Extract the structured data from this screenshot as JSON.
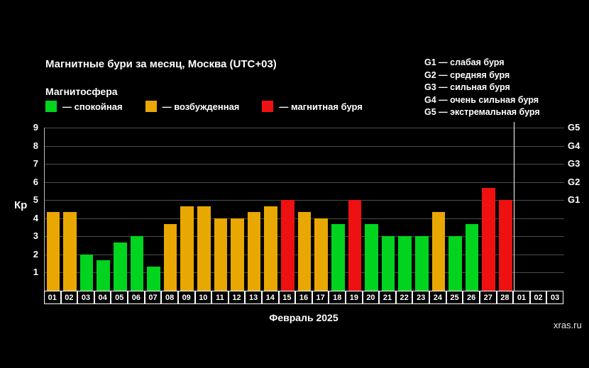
{
  "title": "Магнитные бури за месяц, Москва (UTC+03)",
  "legend": {
    "title": "Магнитосфера",
    "items": [
      {
        "label": "— спокойная",
        "color": "#00d41e",
        "state": "quiet"
      },
      {
        "label": "— возбужденная",
        "color": "#e9a702",
        "state": "excited"
      },
      {
        "label": "— магнитная буря",
        "color": "#ee1111",
        "state": "storm"
      }
    ]
  },
  "g_legend": [
    "G1 — слабая буря",
    "G2 — средняя буря",
    "G3 — сильная буря",
    "G4 — очень сильная буря",
    "G5 — экстремальная буря"
  ],
  "watermark": "xras.ru",
  "chart_data": {
    "type": "bar",
    "title": "Магнитные бури за месяц, Москва (UTC+03)",
    "xlabel": "Февраль 2025",
    "ylabel": "Кр",
    "ylim": [
      0,
      9
    ],
    "yticks": [
      1,
      2,
      3,
      4,
      5,
      6,
      7,
      8,
      9
    ],
    "right_axis": [
      {
        "label": "G5",
        "value": 9
      },
      {
        "label": "G4",
        "value": 8
      },
      {
        "label": "G3",
        "value": 7
      },
      {
        "label": "G2",
        "value": 6
      },
      {
        "label": "G1",
        "value": 5
      }
    ],
    "grid": true,
    "legend_position": "top-left",
    "state_colors": {
      "quiet": "#00d41e",
      "excited": "#e9a702",
      "storm": "#ee1111"
    },
    "now_marker_index": 28,
    "days": [
      {
        "label": "01",
        "kp": 4.33,
        "state": "excited"
      },
      {
        "label": "02",
        "kp": 4.33,
        "state": "excited"
      },
      {
        "label": "03",
        "kp": 2.0,
        "state": "quiet"
      },
      {
        "label": "04",
        "kp": 1.67,
        "state": "quiet"
      },
      {
        "label": "05",
        "kp": 2.67,
        "state": "quiet"
      },
      {
        "label": "06",
        "kp": 3.0,
        "state": "quiet"
      },
      {
        "label": "07",
        "kp": 1.33,
        "state": "quiet"
      },
      {
        "label": "08",
        "kp": 3.67,
        "state": "excited"
      },
      {
        "label": "09",
        "kp": 4.67,
        "state": "excited"
      },
      {
        "label": "10",
        "kp": 4.67,
        "state": "excited"
      },
      {
        "label": "11",
        "kp": 4.0,
        "state": "excited"
      },
      {
        "label": "12",
        "kp": 4.0,
        "state": "excited"
      },
      {
        "label": "13",
        "kp": 4.33,
        "state": "excited"
      },
      {
        "label": "14",
        "kp": 4.67,
        "state": "excited"
      },
      {
        "label": "15",
        "kp": 5.0,
        "state": "storm"
      },
      {
        "label": "16",
        "kp": 4.33,
        "state": "excited"
      },
      {
        "label": "17",
        "kp": 4.0,
        "state": "excited"
      },
      {
        "label": "18",
        "kp": 3.67,
        "state": "quiet"
      },
      {
        "label": "19",
        "kp": 5.0,
        "state": "storm"
      },
      {
        "label": "20",
        "kp": 3.67,
        "state": "quiet"
      },
      {
        "label": "21",
        "kp": 3.0,
        "state": "quiet"
      },
      {
        "label": "22",
        "kp": 3.0,
        "state": "quiet"
      },
      {
        "label": "23",
        "kp": 3.0,
        "state": "quiet"
      },
      {
        "label": "24",
        "kp": 4.33,
        "state": "excited"
      },
      {
        "label": "25",
        "kp": 3.0,
        "state": "quiet"
      },
      {
        "label": "26",
        "kp": 3.67,
        "state": "quiet"
      },
      {
        "label": "27",
        "kp": 5.67,
        "state": "storm"
      },
      {
        "label": "28",
        "kp": 5.0,
        "state": "storm"
      },
      {
        "label": "01",
        "kp": null,
        "state": null
      },
      {
        "label": "02",
        "kp": null,
        "state": null
      },
      {
        "label": "03",
        "kp": null,
        "state": null
      }
    ]
  }
}
